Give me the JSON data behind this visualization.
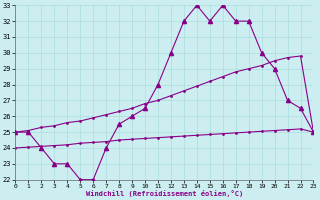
{
  "xlabel": "Windchill (Refroidissement éolien,°C)",
  "xlim": [
    0,
    23
  ],
  "ylim": [
    22,
    33
  ],
  "yticks": [
    22,
    23,
    24,
    25,
    26,
    27,
    28,
    29,
    30,
    31,
    32,
    33
  ],
  "xticks": [
    0,
    1,
    2,
    3,
    4,
    5,
    6,
    7,
    8,
    9,
    10,
    11,
    12,
    13,
    14,
    15,
    16,
    17,
    18,
    19,
    20,
    21,
    22,
    23
  ],
  "background_color": "#cceef0",
  "grid_color": "#aadddd",
  "line_color": "#880088",
  "series1_x": [
    0,
    1,
    2,
    3,
    4,
    5,
    6,
    7,
    8,
    9,
    10,
    11,
    12,
    13,
    14,
    15,
    16,
    17,
    18,
    19,
    20,
    21,
    22,
    23
  ],
  "series1_y": [
    25,
    25,
    24,
    23,
    23,
    22,
    22,
    24,
    25.5,
    26,
    26.5,
    28,
    30,
    32,
    33,
    32,
    33,
    32,
    32,
    30,
    29,
    27,
    26.5,
    25
  ],
  "series2_x": [
    0,
    1,
    2,
    3,
    4,
    5,
    6,
    7,
    8,
    9,
    10,
    11,
    12,
    13,
    14,
    15,
    16,
    17,
    18,
    19,
    20,
    21,
    22,
    23
  ],
  "series2_y": [
    25,
    25.1,
    25.3,
    25.4,
    25.6,
    25.7,
    25.9,
    26.1,
    26.3,
    26.5,
    26.8,
    27.0,
    27.3,
    27.6,
    27.9,
    28.2,
    28.5,
    28.8,
    29.0,
    29.2,
    29.5,
    29.7,
    29.8,
    25
  ],
  "series3_x": [
    0,
    1,
    2,
    3,
    4,
    5,
    6,
    7,
    8,
    9,
    10,
    11,
    12,
    13,
    14,
    15,
    16,
    17,
    18,
    19,
    20,
    21,
    22,
    23
  ],
  "series3_y": [
    24,
    24.05,
    24.1,
    24.15,
    24.2,
    24.3,
    24.35,
    24.4,
    24.5,
    24.55,
    24.6,
    24.65,
    24.7,
    24.75,
    24.8,
    24.85,
    24.9,
    24.95,
    25.0,
    25.05,
    25.1,
    25.15,
    25.2,
    25
  ],
  "marker1": "^",
  "marker2": ".",
  "marker3": ".",
  "markersize1": 3,
  "markersize2": 2,
  "markersize3": 2,
  "linewidth": 0.8
}
